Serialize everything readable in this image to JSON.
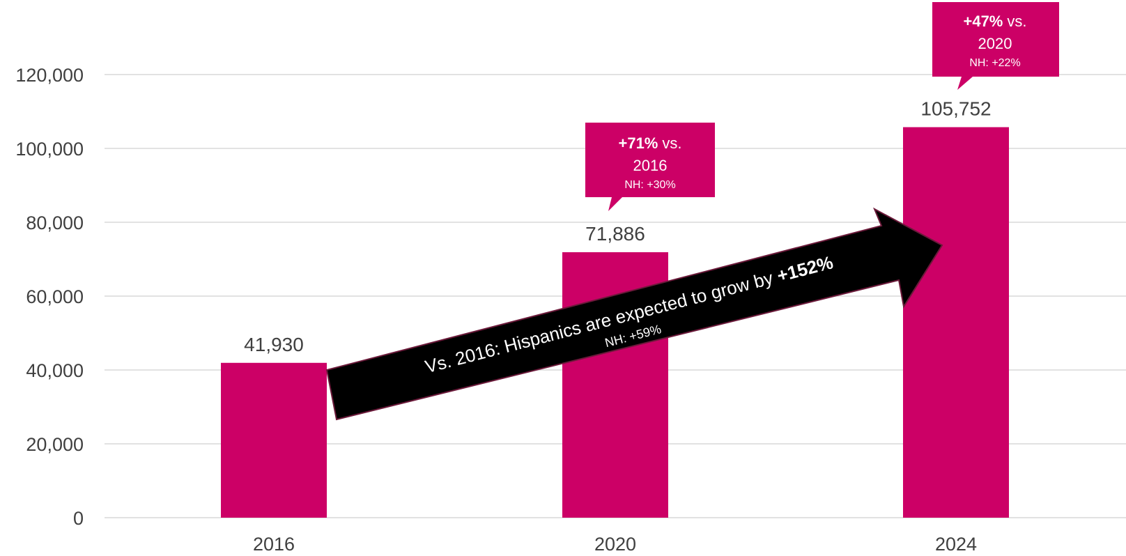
{
  "chart_data": {
    "type": "bar",
    "categories": [
      "2016",
      "2020",
      "2024"
    ],
    "values": [
      41930,
      71886,
      105752
    ],
    "data_labels": [
      "41,930",
      "71,886",
      "105,752"
    ],
    "ylim": [
      0,
      120000
    ],
    "yticks": [
      0,
      20000,
      40000,
      60000,
      80000,
      100000,
      120000
    ],
    "ytick_labels": [
      "0",
      "20,000",
      "40,000",
      "60,000",
      "80,000",
      "100,000",
      "120,000"
    ],
    "grid": true,
    "bar_color": "#cc0066",
    "annotations": {
      "callouts": [
        {
          "category": "2020",
          "pct": "+71%",
          "vs": "vs.",
          "base": "2016",
          "nh": "NH: +30%"
        },
        {
          "category": "2024",
          "pct": "+47%",
          "vs": "vs.",
          "base": "2020",
          "nh": "NH: +22%"
        }
      ],
      "arrow": {
        "text": "Vs. 2016: Hispanics  are expected to grow by ",
        "pct": "+152%",
        "nh": "NH: +59%"
      }
    }
  }
}
